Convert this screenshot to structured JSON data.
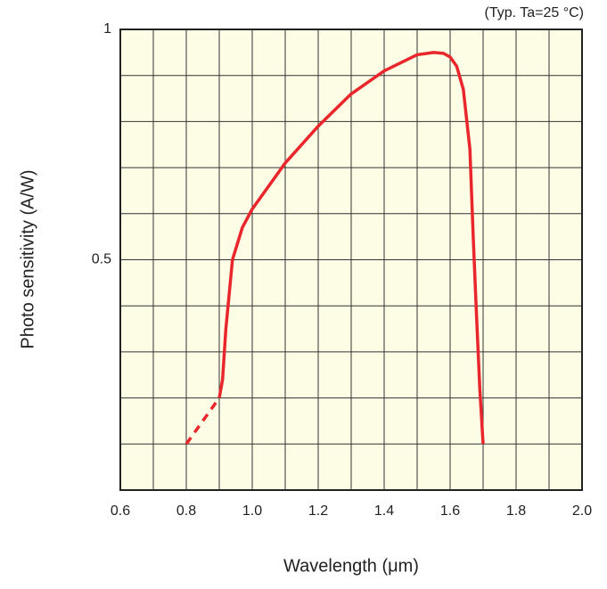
{
  "chart_data": {
    "type": "line",
    "annotation": "(Typ. Ta=25 °C)",
    "x_label": "Wavelength (μm)",
    "y_label": "Photo sensitivity (A/W)",
    "xlim": [
      0.6,
      2.0
    ],
    "ylim": [
      0,
      1
    ],
    "xticks": [
      0.6,
      {
        "value": 0.8,
        "label": "0.8"
      },
      {
        "value": 1.0,
        "label": "1.0"
      },
      1.2,
      1.4,
      1.6,
      1.8,
      {
        "value": 2.0,
        "label": "2.0"
      }
    ],
    "xgrid": [
      0.6,
      0.7,
      0.8,
      0.9,
      1.0,
      1.1,
      1.2,
      1.3,
      1.4,
      1.5,
      1.6,
      1.7,
      1.8,
      1.9,
      2.0
    ],
    "yticks": [
      0.5,
      1
    ],
    "ygrid": [
      0,
      0.1,
      0.2,
      0.3,
      0.4,
      0.5,
      0.6,
      0.7,
      0.8,
      0.9,
      1
    ],
    "grid": true,
    "series": [
      {
        "color": "#e8262b",
        "dashed": true,
        "x": [
          0.8,
          0.9
        ],
        "values": [
          0.1,
          0.2
        ]
      },
      {
        "color": "#e8262b",
        "dashed": false,
        "x": [
          0.9,
          0.91,
          0.92,
          0.94,
          0.97,
          1.0,
          1.1,
          1.2,
          1.3,
          1.4,
          1.5,
          1.55,
          1.58,
          1.6,
          1.62,
          1.64,
          1.66,
          1.67,
          1.68,
          1.69,
          1.7
        ],
        "values": [
          0.2,
          0.24,
          0.35,
          0.5,
          0.57,
          0.61,
          0.71,
          0.79,
          0.86,
          0.91,
          0.945,
          0.95,
          0.948,
          0.94,
          0.92,
          0.87,
          0.74,
          0.55,
          0.38,
          0.22,
          0.1
        ]
      }
    ]
  }
}
